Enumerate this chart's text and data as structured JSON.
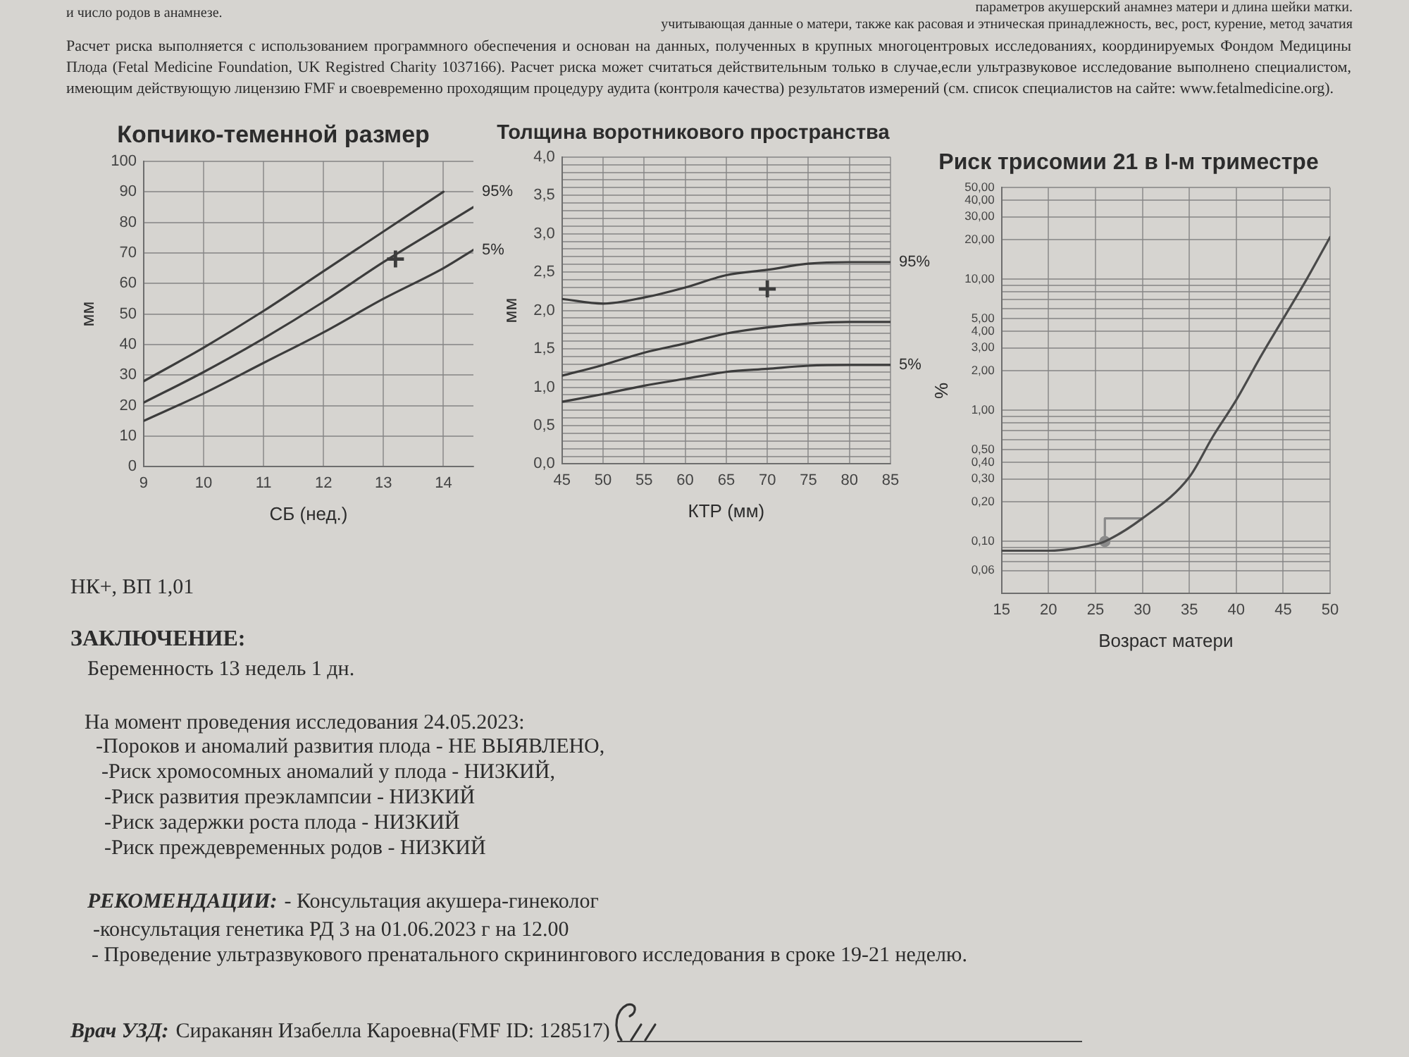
{
  "chart_data": [
    {
      "type": "other",
      "annotations": [
        "параметров акушерский анамнез матери и длина шейки матки.",
        "учитывающая данные о матери, также как расовая и этническая принадлежность, вес, рост, курение, метод зачатия",
        "и число родов в анамнезе.",
        "Расчет риска выполняется с использованием программного обеспечения и основан на данных, полученных в крупных многоцентровых исследованиях, координируемых Фондом Медицины Плода (Fetal Medicine Foundation, UK Registred Charity 1037166). Расчет риска может считаться действительным только в случае,если ультразвуковое исследование выполнено специалистом, имеющим действующую лицензию FMF и своевременно проходящим процедуру аудита (контроля качества) результатов измерений (см. список специалистов на сайте: www.fetalmedicine.org)."
      ]
    },
    {
      "type": "line",
      "title": "Копчико-теменной размер",
      "xlabel": "СБ (нед.)",
      "ylabel": "мм",
      "xlim": [
        9,
        14.5
      ],
      "xticks": [
        9,
        10,
        11,
        12,
        13,
        14
      ],
      "ylim": [
        0,
        100
      ],
      "yticks": [
        0,
        10,
        20,
        30,
        40,
        50,
        60,
        70,
        80,
        90,
        100
      ],
      "grid": true,
      "marker": "none",
      "series": [
        {
          "name": "95%",
          "color": "#3c3c3c",
          "x": [
            9,
            10,
            11,
            12,
            13,
            14
          ],
          "values": [
            28,
            39,
            51,
            64,
            77,
            90
          ]
        },
        {
          "color": "#3c3c3c",
          "x": [
            9,
            10,
            11,
            12,
            13,
            14,
            14.5
          ],
          "values": [
            21,
            31,
            42,
            54,
            67,
            79,
            85
          ]
        },
        {
          "name": "5%",
          "color": "#3c3c3c",
          "x": [
            9,
            10,
            11,
            12,
            13,
            14,
            14.5
          ],
          "values": [
            15,
            24,
            34,
            44,
            55,
            65,
            71
          ]
        },
        {
          "type": "scatter",
          "marker": "cross",
          "color": "#3c3c3c",
          "x": [
            13.2
          ],
          "values": [
            68
          ]
        }
      ]
    },
    {
      "type": "line",
      "title": "Толщина воротникового пространства",
      "xlabel": "КТР (мм)",
      "ylabel": "мм",
      "xlim": [
        45,
        85
      ],
      "xticks": [
        45,
        50,
        55,
        60,
        65,
        70,
        75,
        80,
        85
      ],
      "ylim": [
        0,
        4
      ],
      "yticks": [
        {
          "value": 0,
          "label": "0,0"
        },
        {
          "value": 0.1,
          "label": null
        },
        {
          "value": 0.2,
          "label": null
        },
        {
          "value": 0.3,
          "label": null
        },
        {
          "value": 0.4,
          "label": null
        },
        {
          "value": 0.5,
          "label": "0,5"
        },
        {
          "value": 0.6,
          "label": null
        },
        {
          "value": 0.7,
          "label": null
        },
        {
          "value": 0.8,
          "label": null
        },
        {
          "value": 0.9,
          "label": null
        },
        {
          "value": 1,
          "label": "1,0"
        },
        {
          "value": 1.1,
          "label": null
        },
        {
          "value": 1.2,
          "label": null
        },
        {
          "value": 1.3,
          "label": null
        },
        {
          "value": 1.4,
          "label": null
        },
        {
          "value": 1.5,
          "label": "1,5"
        },
        {
          "value": 1.6,
          "label": null
        },
        {
          "value": 1.7,
          "label": null
        },
        {
          "value": 1.8,
          "label": null
        },
        {
          "value": 1.9,
          "label": null
        },
        {
          "value": 2,
          "label": "2,0"
        },
        {
          "value": 2.1,
          "label": null
        },
        {
          "value": 2.2,
          "label": null
        },
        {
          "value": 2.3,
          "label": null
        },
        {
          "value": 2.4,
          "label": null
        },
        {
          "value": 2.5,
          "label": "2,5"
        },
        {
          "value": 2.6,
          "label": null
        },
        {
          "value": 2.7,
          "label": null
        },
        {
          "value": 2.8,
          "label": null
        },
        {
          "value": 2.9,
          "label": null
        },
        {
          "value": 3,
          "label": "3,0"
        },
        {
          "value": 3.1,
          "label": null
        },
        {
          "value": 3.2,
          "label": null
        },
        {
          "value": 3.3,
          "label": null
        },
        {
          "value": 3.4,
          "label": null
        },
        {
          "value": 3.5,
          "label": "3,5"
        },
        {
          "value": 3.6,
          "label": null
        },
        {
          "value": 3.7,
          "label": null
        },
        {
          "value": 3.8,
          "label": null
        },
        {
          "value": 3.9,
          "label": null
        },
        {
          "value": 4,
          "label": "4,0"
        }
      ],
      "grid": true,
      "marker": "none",
      "x": [
        45,
        50,
        55,
        60,
        65,
        70,
        75,
        80,
        85
      ],
      "series": [
        {
          "name": "95%",
          "color": "#3c3c3c",
          "values": [
            2.15,
            2.09,
            2.17,
            2.3,
            2.46,
            2.53,
            2.61,
            2.63,
            2.63
          ]
        },
        {
          "color": "#3c3c3c",
          "values": [
            1.15,
            1.29,
            1.45,
            1.57,
            1.7,
            1.78,
            1.83,
            1.85,
            1.85
          ]
        },
        {
          "name": "5%",
          "color": "#3c3c3c",
          "values": [
            0.81,
            0.91,
            1.02,
            1.11,
            1.2,
            1.24,
            1.28,
            1.29,
            1.29
          ]
        },
        {
          "type": "scatter",
          "marker": "cross",
          "color": "#3c3c3c",
          "x": [
            70
          ],
          "values": [
            2.28
          ]
        }
      ]
    },
    {
      "type": "line",
      "title": "Риск трисомии 21 в I-м триместре",
      "xlabel": "Возраст матери",
      "ylabel": "%",
      "log": true,
      "xlim": [
        15,
        50
      ],
      "xticks": [
        15,
        20,
        25,
        30,
        35,
        40,
        45,
        50
      ],
      "ylim": [
        0.04,
        50
      ],
      "yticks": [
        {
          "value": 0.06,
          "label": "0,06"
        },
        {
          "value": 0.07,
          "label": null
        },
        {
          "value": 0.08,
          "label": null
        },
        {
          "value": 0.09,
          "label": null
        },
        {
          "value": 0.1,
          "label": "0,10"
        },
        {
          "value": 0.2,
          "label": "0,20"
        },
        {
          "value": 0.3,
          "label": "0,30"
        },
        {
          "value": 0.4,
          "label": "0,40"
        },
        {
          "value": 0.5,
          "label": "0,50"
        },
        {
          "value": 0.6,
          "label": null
        },
        {
          "value": 0.7,
          "label": null
        },
        {
          "value": 0.8,
          "label": null
        },
        {
          "value": 0.9,
          "label": null
        },
        {
          "value": 1,
          "label": "1,00"
        },
        {
          "value": 2,
          "label": "2,00"
        },
        {
          "value": 3,
          "label": "3,00"
        },
        {
          "value": 4,
          "label": "4,00"
        },
        {
          "value": 5,
          "label": "5,00"
        },
        {
          "value": 6,
          "label": null
        },
        {
          "value": 7,
          "label": null
        },
        {
          "value": 8,
          "label": null
        },
        {
          "value": 9,
          "label": null
        },
        {
          "value": 10,
          "label": "10,00"
        },
        {
          "value": 20,
          "label": "20,00"
        },
        {
          "value": 30,
          "label": "30,00"
        },
        {
          "value": 40,
          "label": "40,00"
        },
        {
          "value": 50,
          "label": "50,00"
        }
      ],
      "grid": true,
      "marker": "none",
      "series": [
        {
          "color": "#4a4a4a",
          "x": [
            15,
            20,
            25,
            26,
            30,
            35,
            37.5,
            40,
            42.5,
            45,
            47.5,
            50
          ],
          "values": [
            0.085,
            0.085,
            0.095,
            0.1,
            0.15,
            0.31,
            0.63,
            1.2,
            2.5,
            5,
            10,
            21
          ]
        },
        {
          "type": "step",
          "color": "#8a8a8a",
          "x": [
            26,
            30
          ],
          "values": [
            0.1,
            0.15
          ]
        },
        {
          "type": "scatter",
          "marker": "circle",
          "color": "#8a8a8a",
          "x": [
            26
          ],
          "values": [
            0.1
          ]
        }
      ]
    },
    {
      "type": "other",
      "annotations": [
        "НК+, ВП 1,01",
        "ЗАКЛЮЧЕНИЕ:",
        "Беременность 13 недель 1 дн.",
        "На момент проведения исследования 24.05.2023:",
        "-Пороков и аномалий развития плода - НЕ ВЫЯВЛЕНО,",
        "-Риск хромосомных аномалий у плода - НИЗКИЙ,",
        "-Риск развития преэклампсии - НИЗКИЙ",
        "-Риск задержки роста плода - НИЗКИЙ",
        "-Риск преждевременных родов - НИЗКИЙ",
        "РЕКОМЕНДАЦИИ:",
        "- Консультация акушера-гинеколог",
        "-консультация генетика РД 3 на 01.06.2023 г на 12.00",
        "- Проведение ультразвукового пренатального скринингового исследования в сроке 19-21 неделю.",
        "Врач УЗД:",
        "Сираканян Изабелла Кароевна(FMF ID: 128517)"
      ]
    }
  ]
}
